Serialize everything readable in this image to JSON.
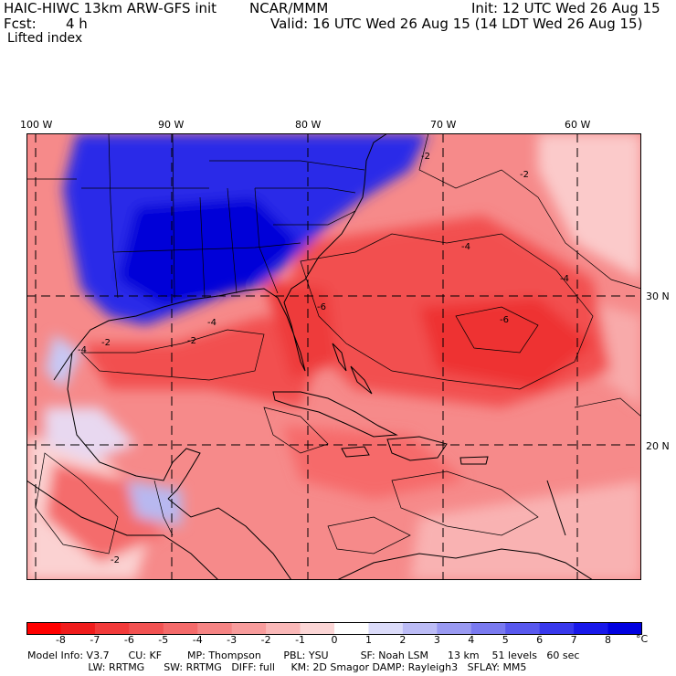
{
  "header": {
    "title": "HAIC-HIWC 13km ARW-GFS init",
    "org": "NCAR/MMM",
    "init": "Init: 12 UTC Wed 26 Aug 15",
    "fcst_label": "Fcst:",
    "fcst_value": "4 h",
    "valid": "Valid: 16 UTC Wed 26 Aug 15 (14 LDT Wed 26 Aug 15)",
    "field": "Lifted index"
  },
  "map": {
    "lon_labels": [
      "100 W",
      "90 W",
      "80 W",
      "70 W",
      "60 W"
    ],
    "lat_labels": [
      "30 N",
      "20 N"
    ],
    "contour_labels": [
      "-2",
      "-2",
      "-4",
      "-4",
      "-4",
      "-6",
      "-6",
      "-4",
      "-2",
      "-2",
      "-2"
    ]
  },
  "colorbar": {
    "labels": [
      "-8",
      "-7",
      "-6",
      "-5",
      "-4",
      "-3",
      "-2",
      "-1",
      "0",
      "1",
      "2",
      "3",
      "4",
      "5",
      "6",
      "7",
      "8"
    ],
    "unit": "°C",
    "colors": [
      "#ff0000",
      "#f01c1c",
      "#f23a3a",
      "#f25252",
      "#f46a6a",
      "#f68484",
      "#f89c9c",
      "#fab8b8",
      "#fcd6d6",
      "#ffffff",
      "#dcdcfa",
      "#bcbcf6",
      "#9a9af2",
      "#7a7af0",
      "#5858ee",
      "#3838ec",
      "#1818ea",
      "#0000e0"
    ]
  },
  "model_info": {
    "line1": "Model Info: V3.7      CU: KF        MP: Thompson       PBL: YSU          SF: Noah LSM      13 km    51 levels   60 sec",
    "line2": "                   LW: RRTMG      SW: RRTMG   DIFF: full     KM: 2D Smagor DAMP: Rayleigh3   SFLAY: MM5"
  }
}
